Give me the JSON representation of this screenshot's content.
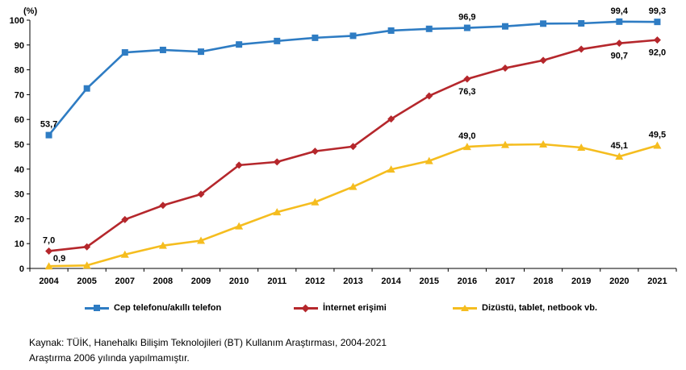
{
  "chart_data": {
    "type": "line",
    "unit_label": "(%)",
    "categories": [
      "2004",
      "2005",
      "2007",
      "2008",
      "2009",
      "2010",
      "2011",
      "2012",
      "2013",
      "2014",
      "2015",
      "2016",
      "2017",
      "2018",
      "2019",
      "2020",
      "2021"
    ],
    "ylim": [
      0,
      100
    ],
    "yticks": [
      "0",
      "10",
      "20",
      "30",
      "40",
      "50",
      "60",
      "70",
      "80",
      "90",
      "100"
    ],
    "grid": false,
    "legend_position": "bottom",
    "series": [
      {
        "name": "Cep telefonu/akıllı telefon",
        "color": "#2E7CC3",
        "marker": "square",
        "values": [
          53.7,
          72.5,
          87.0,
          88.0,
          87.3,
          90.2,
          91.6,
          92.9,
          93.7,
          95.8,
          96.5,
          96.9,
          97.5,
          98.6,
          98.7,
          99.4,
          99.3
        ]
      },
      {
        "name": "İnternet erişimi",
        "color": "#B5272C",
        "marker": "diamond",
        "values": [
          7.0,
          8.7,
          19.7,
          25.4,
          29.9,
          41.6,
          42.9,
          47.2,
          49.1,
          60.2,
          69.5,
          76.3,
          80.7,
          83.8,
          88.3,
          90.7,
          92.0
        ]
      },
      {
        "name": "Dizüstü, tablet, netbook vb.",
        "color": "#F5BD1F",
        "marker": "triangle",
        "values": [
          0.9,
          1.2,
          5.6,
          9.2,
          11.2,
          17.0,
          22.7,
          26.7,
          32.9,
          39.9,
          43.3,
          49.0,
          49.8,
          50.0,
          48.7,
          45.1,
          49.5
        ]
      }
    ],
    "data_labels": [
      {
        "series": 0,
        "index": 0,
        "text": "53,7",
        "pos": "above"
      },
      {
        "series": 0,
        "index": 11,
        "text": "96,9",
        "pos": "above"
      },
      {
        "series": 0,
        "index": 15,
        "text": "99,4",
        "pos": "above"
      },
      {
        "series": 0,
        "index": 16,
        "text": "99,3",
        "pos": "above"
      },
      {
        "series": 1,
        "index": 0,
        "text": "7,0",
        "pos": "above"
      },
      {
        "series": 1,
        "index": 11,
        "text": "76,3",
        "pos": "below"
      },
      {
        "series": 1,
        "index": 15,
        "text": "90,7",
        "pos": "below"
      },
      {
        "series": 1,
        "index": 16,
        "text": "92,0",
        "pos": "below"
      },
      {
        "series": 2,
        "index": 0,
        "text": "0,9",
        "pos": "above-right"
      },
      {
        "series": 2,
        "index": 11,
        "text": "49,0",
        "pos": "above"
      },
      {
        "series": 2,
        "index": 15,
        "text": "45,1",
        "pos": "above"
      },
      {
        "series": 2,
        "index": 16,
        "text": "49,5",
        "pos": "above"
      }
    ]
  },
  "notes": {
    "source": "Kaynak: TÜİK, Hanehalkı Bilişim Teknolojileri (BT) Kullanım Araştırması, 2004-2021",
    "footnote": "Araştırma 2006 yılında yapılmamıştır."
  }
}
